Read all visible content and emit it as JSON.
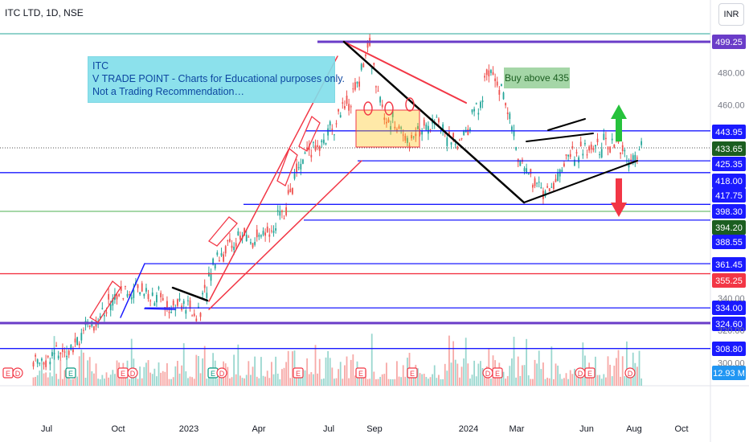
{
  "header": {
    "title": "ITC LTD, 1D, NSE",
    "currency": "INR"
  },
  "annotations": {
    "note_lines": [
      "ITC",
      "V TRADE POINT - Charts for Educational purposes only.",
      "Not a Trading Recommendation…"
    ],
    "buy_label": "Buy above 435"
  },
  "colors": {
    "blue_line": "#1a1aff",
    "purple_line": "#6a3cc8",
    "red_trend": "#f23645",
    "black_trend": "#000000",
    "candle_up": "#26a69a",
    "candle_down": "#ef5350",
    "arrow_up": "#26c23c",
    "arrow_down": "#f23645"
  },
  "chart_data": {
    "type": "candlestick",
    "symbol": "ITC LTD",
    "interval": "1D",
    "exchange": "NSE",
    "y_range": [
      296,
      505
    ],
    "y_ticks": [
      300,
      320,
      340,
      460,
      480
    ],
    "x_ticks": [
      "Jul",
      "Oct",
      "2023",
      "Apr",
      "Jul",
      "Sep",
      "2024",
      "Mar",
      "Jun",
      "Aug",
      "Oct"
    ],
    "price_labels": [
      {
        "value": "499.25",
        "color": "#6a3cc8"
      },
      {
        "value": "443.95",
        "color": "#1a1aff"
      },
      {
        "value": "433.65",
        "color": "#1b5e20"
      },
      {
        "value": "425.35",
        "color": "#1a1aff"
      },
      {
        "value": "418.00",
        "color": "#1a1aff"
      },
      {
        "value": "417.75",
        "color": "#1a1aff"
      },
      {
        "value": "398.30",
        "color": "#1a1aff"
      },
      {
        "value": "394.20",
        "color": "#1b5e20"
      },
      {
        "value": "388.55",
        "color": "#1a1aff"
      },
      {
        "value": "361.45",
        "color": "#1a1aff"
      },
      {
        "value": "355.25",
        "color": "#f23645"
      },
      {
        "value": "334.00",
        "color": "#1a1aff"
      },
      {
        "value": "324.60",
        "color": "#1a1aff"
      },
      {
        "value": "308.80",
        "color": "#1a1aff"
      },
      {
        "value": "12.93 M",
        "color": "#2196f3"
      }
    ],
    "horizontal_levels": [
      {
        "value": 499.25,
        "color": "#6a3cc8"
      },
      {
        "value": 443.95,
        "color": "#1a1aff"
      },
      {
        "value": 425.35,
        "color": "#1a1aff"
      },
      {
        "value": 418.0,
        "color": "#1a1aff"
      },
      {
        "value": 398.3,
        "color": "#1a1aff"
      },
      {
        "value": 388.55,
        "color": "#1a1aff"
      },
      {
        "value": 361.45,
        "color": "#1a1aff"
      },
      {
        "value": 355.25,
        "color": "#f23645"
      },
      {
        "value": 334.0,
        "color": "#1a1aff"
      },
      {
        "value": 324.6,
        "color": "#6a3cc8"
      },
      {
        "value": 308.8,
        "color": "#1a1aff"
      }
    ],
    "last_price": 433.65,
    "volume_last": "12.93M",
    "event_markers": [
      "E",
      "D",
      "E",
      "E",
      "D",
      "E",
      "D",
      "E",
      "E",
      "E",
      "D",
      "E",
      "D",
      "E",
      "D"
    ],
    "price_path": [
      {
        "date": "2022-06-15",
        "close": 300
      },
      {
        "date": "2022-07-15",
        "close": 306
      },
      {
        "date": "2022-08-20",
        "close": 320
      },
      {
        "date": "2022-09-20",
        "close": 340
      },
      {
        "date": "2022-10-20",
        "close": 348
      },
      {
        "date": "2022-11-10",
        "close": 340
      },
      {
        "date": "2022-12-10",
        "close": 336
      },
      {
        "date": "2023-01-01",
        "close": 330
      },
      {
        "date": "2023-01-20",
        "close": 365
      },
      {
        "date": "2023-02-20",
        "close": 378
      },
      {
        "date": "2023-03-15",
        "close": 375
      },
      {
        "date": "2023-04-10",
        "close": 390
      },
      {
        "date": "2023-05-05",
        "close": 425
      },
      {
        "date": "2023-06-10",
        "close": 445
      },
      {
        "date": "2023-07-10",
        "close": 470
      },
      {
        "date": "2023-07-25",
        "close": 499
      },
      {
        "date": "2023-08-10",
        "close": 455
      },
      {
        "date": "2023-09-10",
        "close": 440
      },
      {
        "date": "2023-10-15",
        "close": 450
      },
      {
        "date": "2023-11-10",
        "close": 433
      },
      {
        "date": "2023-12-05",
        "close": 460
      },
      {
        "date": "2023-12-20",
        "close": 485
      },
      {
        "date": "2024-01-05",
        "close": 465
      },
      {
        "date": "2024-01-20",
        "close": 430
      },
      {
        "date": "2024-02-10",
        "close": 412
      },
      {
        "date": "2024-02-28",
        "close": 405
      },
      {
        "date": "2024-03-20",
        "close": 428
      },
      {
        "date": "2024-04-20",
        "close": 432
      },
      {
        "date": "2024-05-15",
        "close": 438
      },
      {
        "date": "2024-06-05",
        "close": 425
      },
      {
        "date": "2024-06-20",
        "close": 433
      }
    ]
  }
}
